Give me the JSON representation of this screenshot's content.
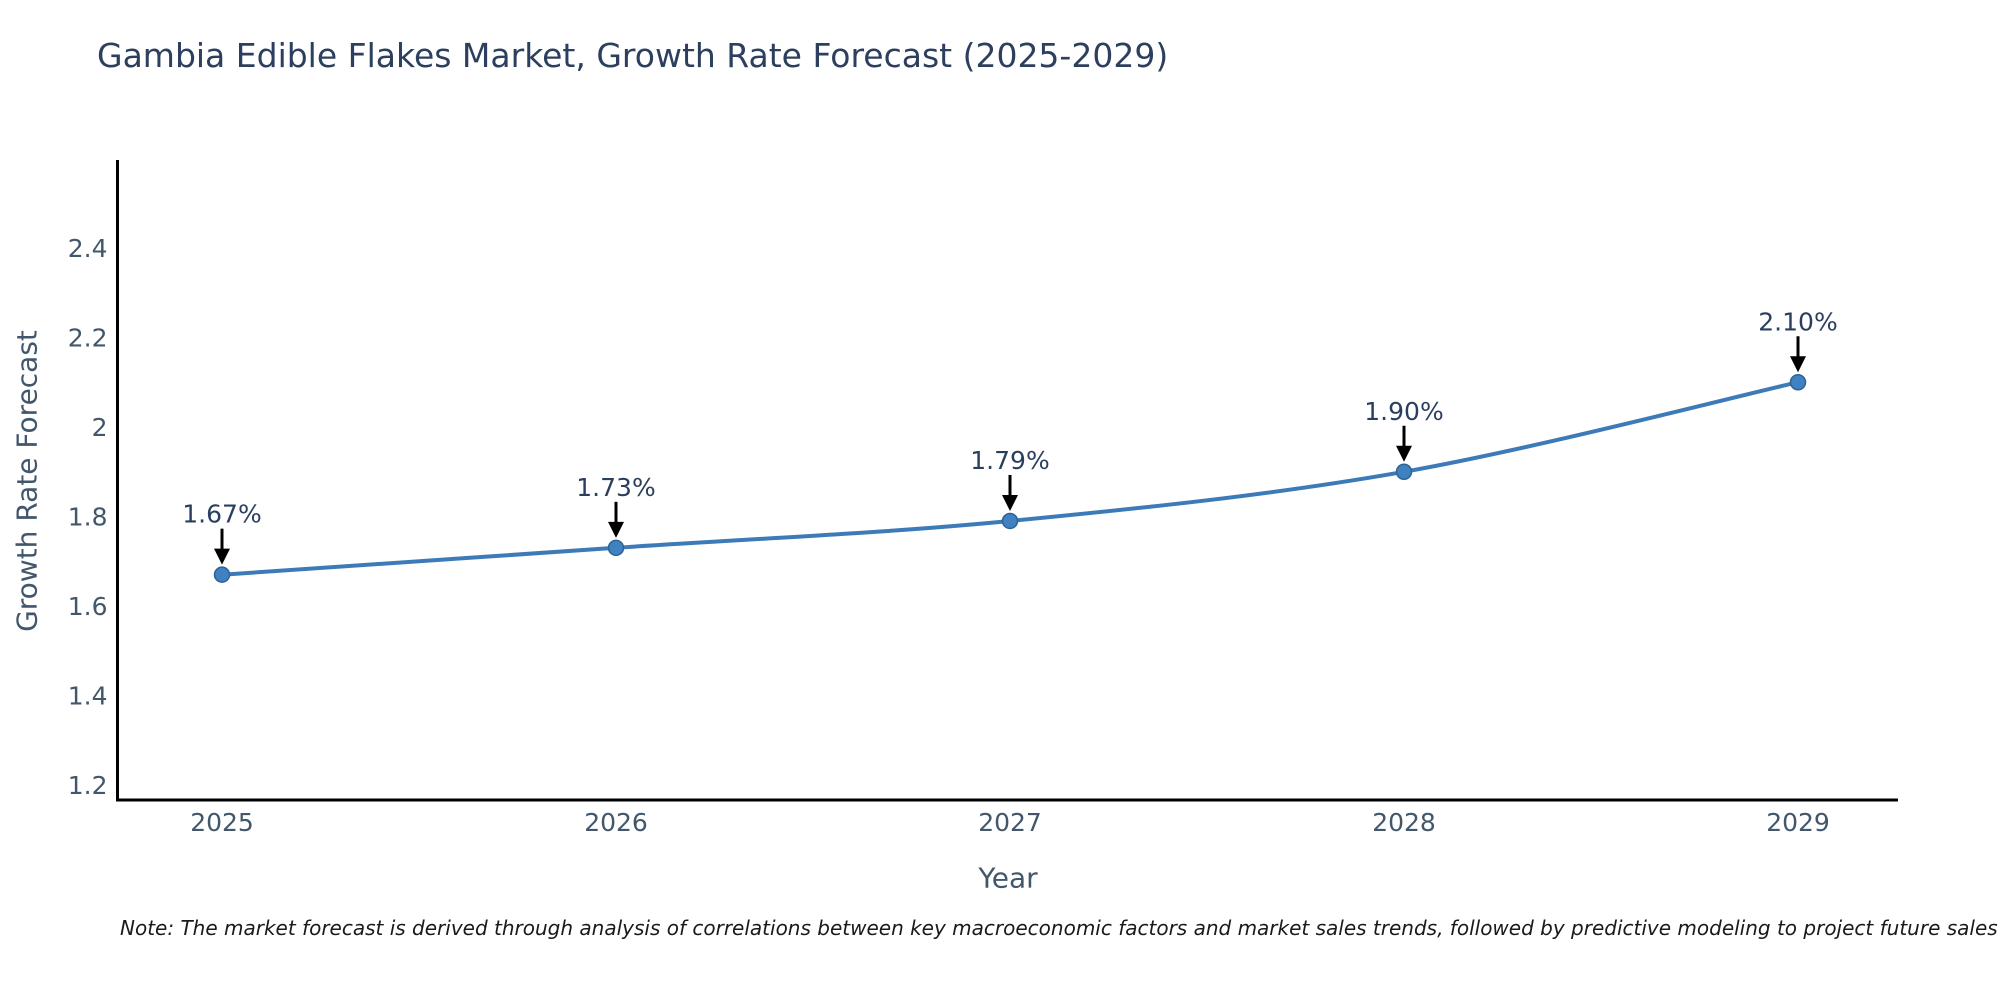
{
  "note": "Note: The market forecast is derived through analysis of correlations between key macroeconomic factors and market sales trends, followed by predictive modeling to project future sales",
  "chart_data": {
    "type": "line",
    "title": "Gambia Edible Flakes Market, Growth Rate Forecast (2025-2029)",
    "xlabel": "Year",
    "ylabel": "Growth Rate Forecast",
    "x": [
      2025,
      2026,
      2027,
      2028,
      2029
    ],
    "y": [
      1.67,
      1.73,
      1.79,
      1.9,
      2.1
    ],
    "point_labels": [
      "1.67%",
      "1.73%",
      "1.79%",
      "1.90%",
      "2.10%"
    ],
    "x_tick_labels": [
      "2025",
      "2026",
      "2027",
      "2028",
      "2029"
    ],
    "y_tick_values": [
      1.2,
      1.4,
      1.6,
      1.8,
      2.0,
      2.2,
      2.4
    ],
    "y_tick_labels": [
      "1.2",
      "1.4",
      "1.6",
      "1.8",
      "2",
      "2.2",
      "2.4"
    ],
    "ylim": [
      1.2,
      2.6
    ],
    "xlim": [
      2024.74,
      2029.25
    ],
    "grid": false,
    "legend": "none",
    "annotation_style": "down-arrow-to-point",
    "colors": {
      "line": "#3d7ab8",
      "marker": "#3f81c1",
      "marker_edge": "#2e6396",
      "axis": "#000000",
      "tick_label": "#42576b",
      "title": "#2c3f5e",
      "annotation_text": "#2a3f5f",
      "arrow": "#000000",
      "note_text": "#1a1a1a",
      "background": "#ffffff"
    }
  }
}
